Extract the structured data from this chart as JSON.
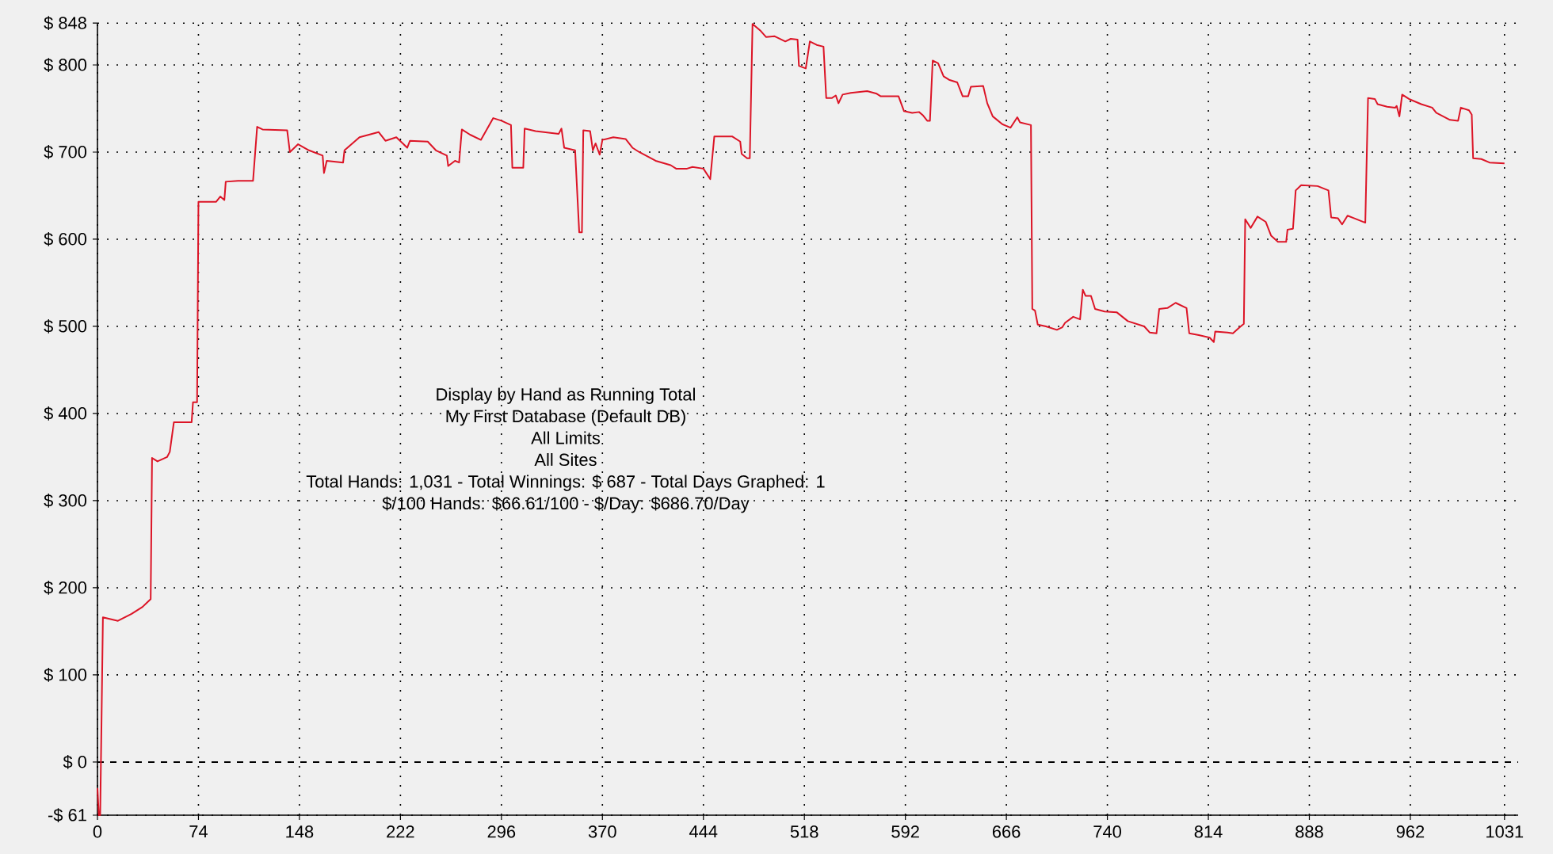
{
  "chart_data": {
    "type": "line",
    "x": [
      0,
      1,
      2,
      3,
      4,
      15,
      25,
      33,
      39,
      40,
      44,
      51,
      53,
      56,
      69,
      70,
      73,
      74,
      87,
      90,
      93,
      94,
      103,
      114,
      117,
      121,
      139,
      141,
      147,
      155,
      165,
      166,
      168,
      180,
      181,
      192,
      206,
      211,
      219,
      227,
      229,
      242,
      248,
      256,
      257,
      262,
      265,
      267,
      273,
      281,
      290,
      296,
      303,
      304,
      312,
      313,
      321,
      338,
      340,
      342,
      350,
      353,
      355,
      356,
      361,
      363,
      365,
      368,
      370,
      378,
      387,
      392,
      397,
      409,
      420,
      424,
      432,
      436,
      444,
      449,
      452,
      465,
      471,
      472,
      476,
      478,
      480,
      486,
      490,
      496,
      504,
      508,
      513,
      514,
      519,
      522,
      527,
      532,
      534,
      538,
      541,
      543,
      546,
      552,
      564,
      571,
      574,
      587,
      591,
      597,
      602,
      605,
      608,
      610,
      612,
      616,
      620,
      624,
      630,
      634,
      638,
      640,
      649,
      652,
      656,
      663,
      669,
      674,
      676,
      684,
      685,
      687,
      689,
      695,
      703,
      707,
      709,
      715,
      720,
      722,
      724,
      728,
      731,
      738,
      747,
      755,
      767,
      771,
      776,
      778,
      784,
      790,
      798,
      800,
      807,
      815,
      818,
      819,
      828,
      832,
      837,
      840,
      841,
      845,
      850,
      856,
      860,
      865,
      871,
      872,
      876,
      878,
      882,
      894,
      902,
      904,
      909,
      912,
      916,
      921,
      929,
      931,
      936,
      938,
      945,
      951,
      952,
      954,
      956,
      961,
      970,
      978,
      981,
      991,
      997,
      999,
      1005,
      1007,
      1008,
      1014,
      1020,
      1031
    ],
    "series": [
      {
        "color": "#dc1426",
        "values": [
          -30,
          -61,
          -61,
          50,
          166,
          162,
          170,
          178,
          187,
          349,
          345,
          350,
          356,
          390,
          390,
          413,
          413,
          643,
          643,
          649,
          645,
          666,
          667,
          667,
          729,
          726,
          725,
          700,
          709,
          702,
          696,
          676,
          690,
          688,
          702,
          717,
          723,
          713,
          717,
          705,
          713,
          712,
          702,
          696,
          684,
          690,
          688,
          726,
          720,
          714,
          739,
          736,
          731,
          682,
          682,
          727,
          724,
          721,
          727,
          705,
          702,
          608,
          608,
          725,
          724,
          702,
          710,
          697,
          714,
          717,
          715,
          705,
          700,
          690,
          685,
          681,
          681,
          683,
          681,
          669,
          718,
          718,
          712,
          698,
          693,
          693,
          847,
          839,
          832,
          833,
          827,
          830,
          829,
          799,
          796,
          827,
          823,
          821,
          762,
          762,
          765,
          756,
          766,
          768,
          770,
          767,
          764,
          764,
          747,
          745,
          746,
          742,
          736,
          736,
          805,
          802,
          787,
          783,
          780,
          764,
          764,
          775,
          776,
          756,
          741,
          732,
          728,
          740,
          734,
          731,
          520,
          518,
          502,
          500,
          496,
          499,
          504,
          511,
          508,
          542,
          535,
          535,
          520,
          517,
          516,
          506,
          500,
          493,
          492,
          520,
          521,
          527,
          521,
          492,
          490,
          487,
          482,
          494,
          493,
          492,
          499,
          503,
          623,
          613,
          626,
          620,
          604,
          597,
          597,
          611,
          612,
          656,
          662,
          661,
          656,
          625,
          624,
          617,
          627,
          624,
          619,
          762,
          761,
          755,
          752,
          751,
          753,
          741,
          766,
          761,
          755,
          751,
          745,
          737,
          736,
          751,
          748,
          743,
          693,
          692,
          688,
          687
        ]
      }
    ],
    "xlim": [
      0,
      1041
    ],
    "ylim": [
      -61,
      848
    ],
    "xticks": [
      0,
      74,
      148,
      222,
      296,
      370,
      444,
      518,
      592,
      666,
      740,
      814,
      888,
      962,
      1031
    ],
    "yticks": [
      {
        "value": -61,
        "label": "-$ 61"
      },
      {
        "value": 0,
        "label": "$ 0"
      },
      {
        "value": 100,
        "label": "$ 100"
      },
      {
        "value": 200,
        "label": "$ 200"
      },
      {
        "value": 300,
        "label": "$ 300"
      },
      {
        "value": 400,
        "label": "$ 400"
      },
      {
        "value": 500,
        "label": "$ 500"
      },
      {
        "value": 600,
        "label": "$ 600"
      },
      {
        "value": 700,
        "label": "$ 700"
      },
      {
        "value": 800,
        "label": "$ 800"
      },
      {
        "value": 848,
        "label": "$ 848"
      }
    ],
    "grid": true,
    "ref_lines": [
      {
        "axis": "y",
        "value": 0,
        "line_style": "dashed",
        "color": "#000000"
      }
    ],
    "annotations": [
      "Display by Hand as Running Total",
      "My First Database (Default DB)",
      "All Limits",
      "All Sites",
      "Total Hands: 1,031 - Total Winnings: $ 687 - Total Days Graphed: 1",
      "$/100 Hands: $66.61/100 - $/Day: $686.70/Day"
    ]
  }
}
